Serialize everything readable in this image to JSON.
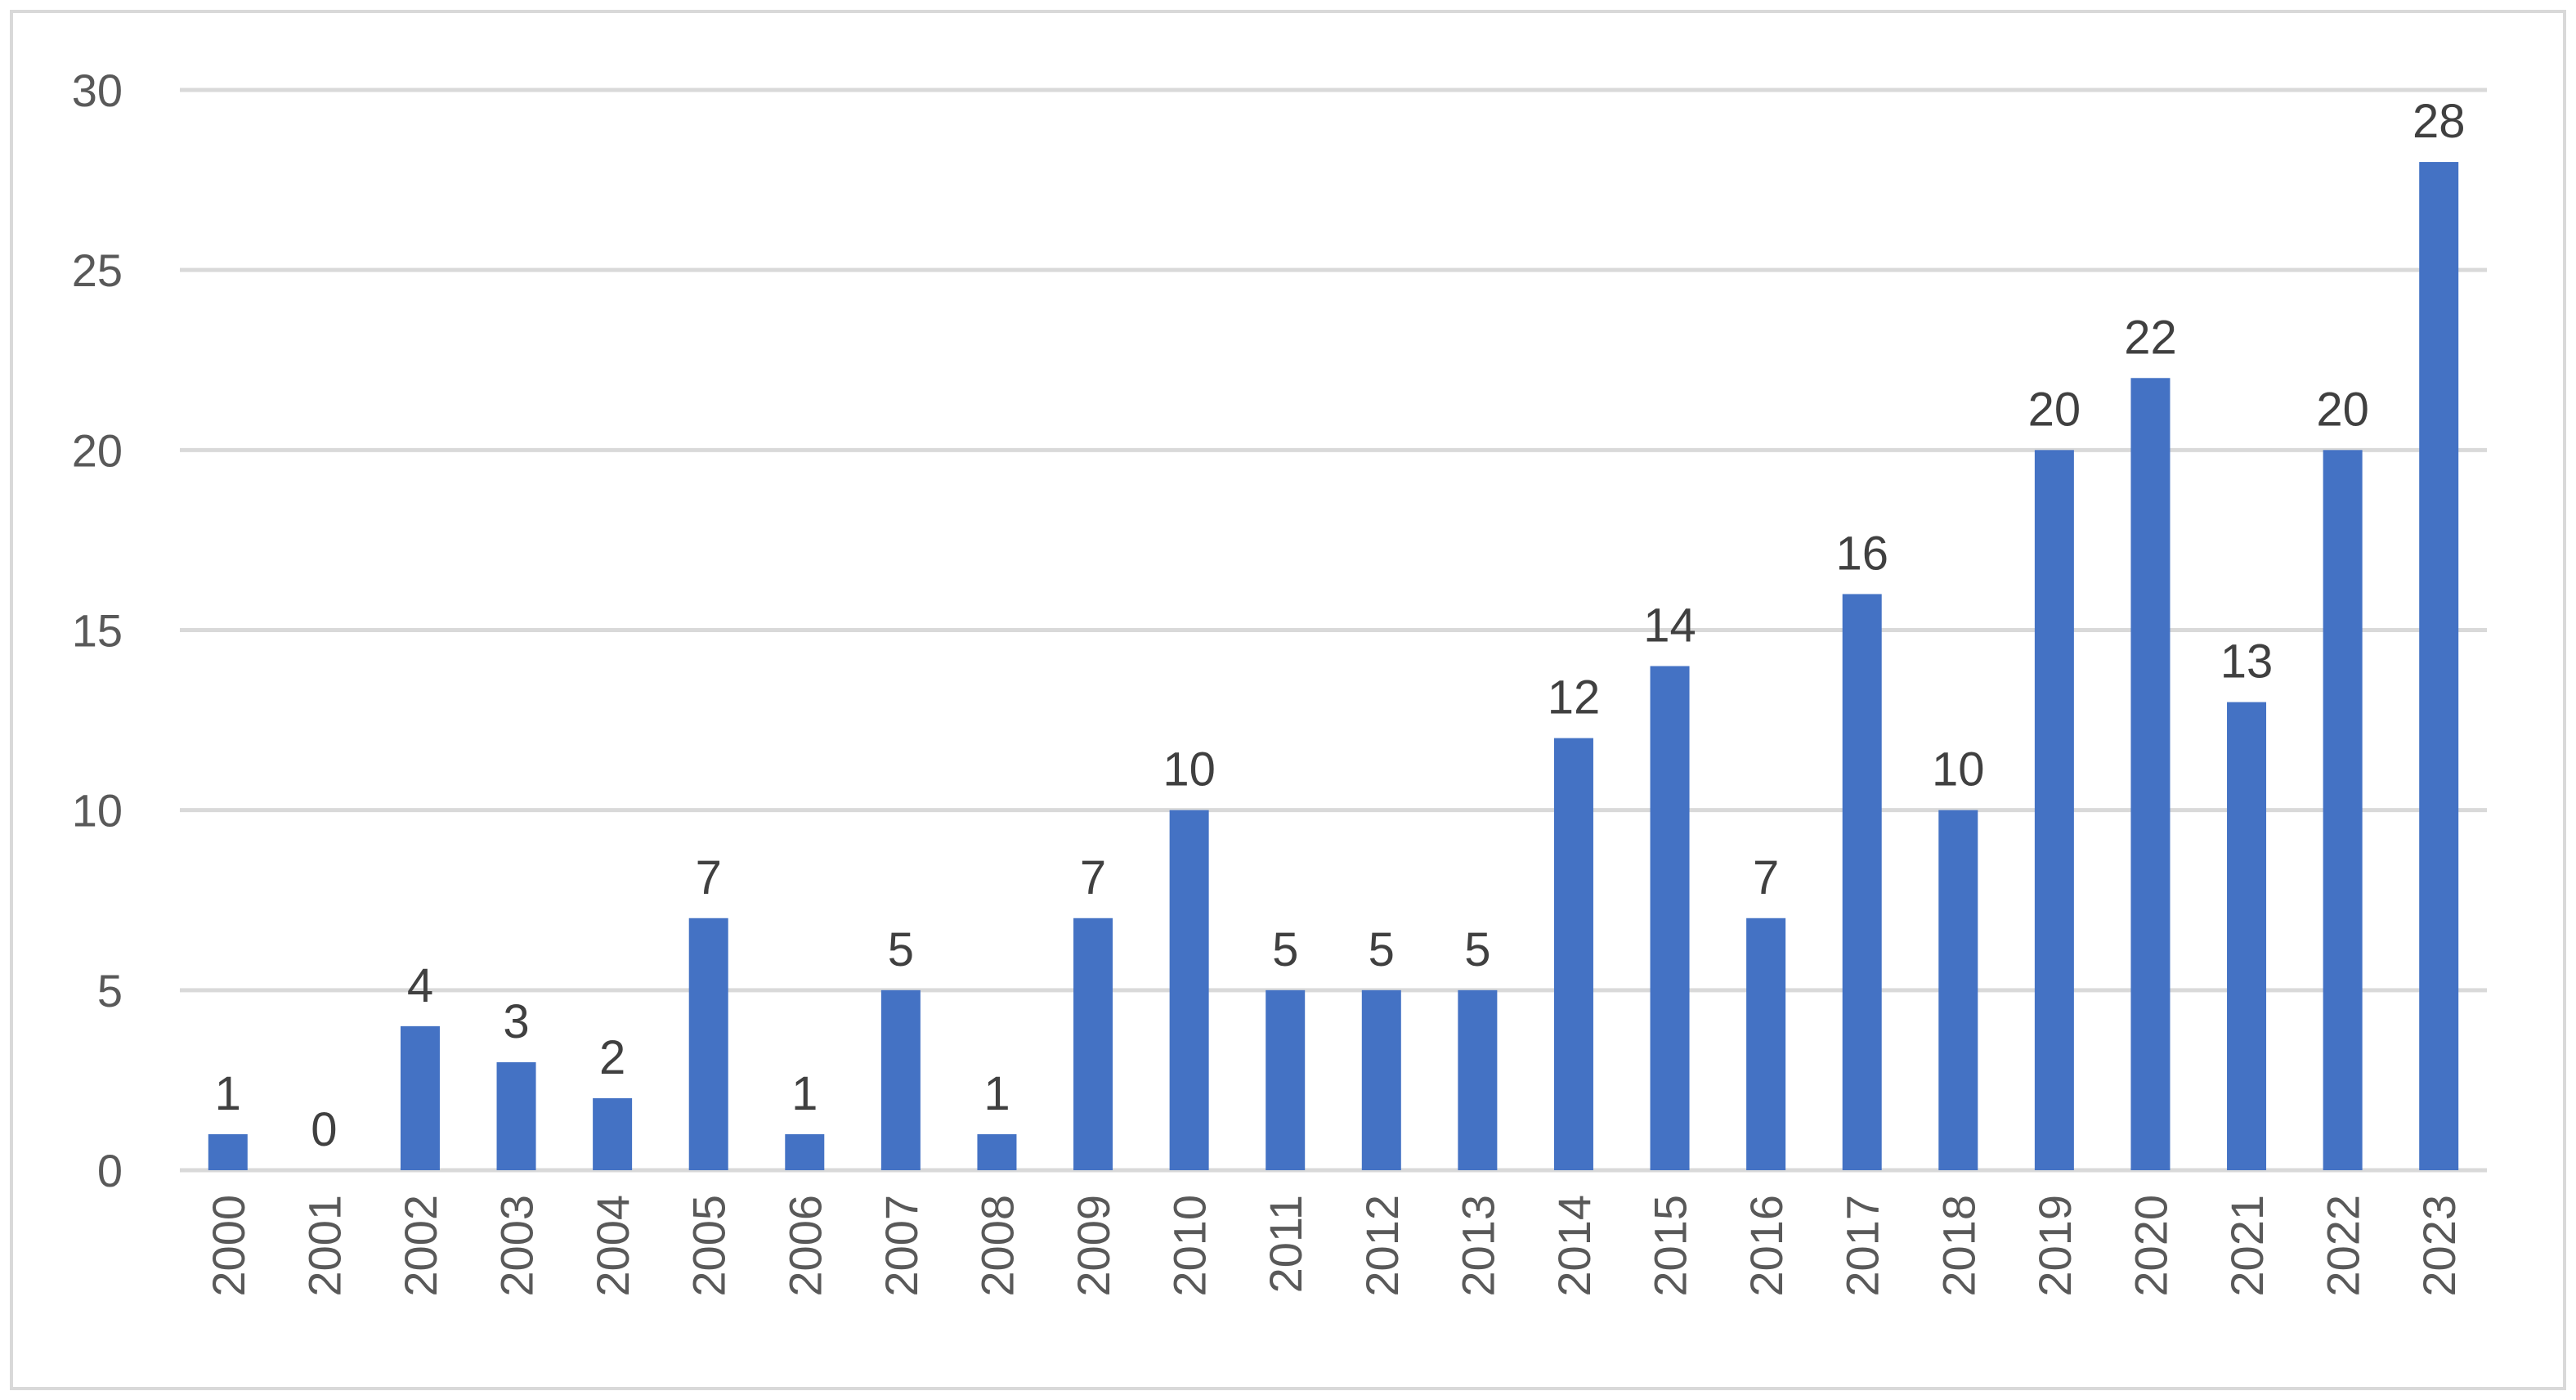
{
  "chart_data": {
    "type": "bar",
    "title": "",
    "xlabel": "",
    "ylabel": "",
    "categories": [
      "2000",
      "2001",
      "2002",
      "2003",
      "2004",
      "2005",
      "2006",
      "2007",
      "2008",
      "2009",
      "2010",
      "2011",
      "2012",
      "2013",
      "2014",
      "2015",
      "2016",
      "2017",
      "2018",
      "2019",
      "2020",
      "2021",
      "2022",
      "2023"
    ],
    "values": [
      1,
      0,
      4,
      3,
      2,
      7,
      1,
      5,
      1,
      7,
      10,
      5,
      5,
      5,
      12,
      14,
      7,
      16,
      10,
      20,
      22,
      13,
      20,
      28
    ],
    "ylim": [
      0,
      30
    ],
    "y_ticks": [
      0,
      5,
      10,
      15,
      20,
      25,
      30
    ],
    "grid": true,
    "legend": "none",
    "data_labels": true,
    "x_tick_rotation": "vertical",
    "bar_color": "#4472c4",
    "grid_color": "#d9d9d9"
  }
}
